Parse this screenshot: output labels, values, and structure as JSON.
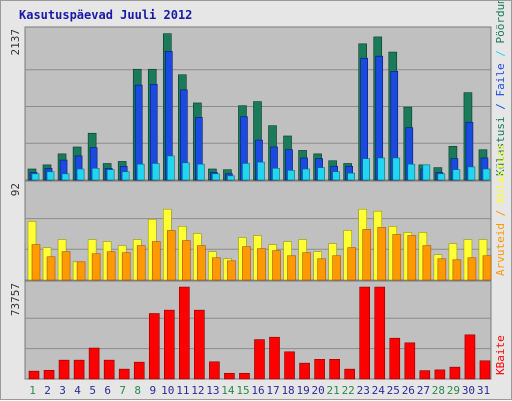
{
  "title": "Kasutuspäevad Juuli 2012",
  "colors": {
    "panel_bg": "#c0c0c0",
    "grid": "#8c8c8c",
    "visits": "#1a7a5a",
    "pages": "#1a4adf",
    "files": "#22d6f2",
    "hits": "#ffff33",
    "hits_stroke": "#999900",
    "hosts": "#ff9900",
    "hosts_stroke": "#aa5500",
    "kbytes": "#ff0000",
    "kbytes_stroke": "#880000",
    "weekday_label": "#2a2a9a",
    "weekend_label": "#2a8a4a"
  },
  "chart_data": [
    {
      "type": "bar",
      "title": "",
      "ymax_label": "2137",
      "right_labels": [
        {
          "text": "Külastusi",
          "color": "#1a7a5a"
        },
        {
          "text": " / ",
          "color": "#1a4adf"
        },
        {
          "text": "Faile",
          "color": "#1a4adf"
        },
        {
          "text": " / ",
          "color": "#22d6f2"
        },
        {
          "text": "Pöördumisi",
          "color": "#1a7a5a"
        }
      ],
      "ylim": [
        0,
        2137
      ],
      "series": [
        {
          "name": "Külastusi",
          "color": "#1a7a5a",
          "values": [
            160,
            220,
            380,
            480,
            680,
            240,
            270,
            1610,
            1610,
            2127,
            1530,
            1120,
            160,
            150,
            1080,
            1140,
            790,
            640,
            430,
            380,
            280,
            240,
            1980,
            2080,
            1860,
            1060,
            220,
            180,
            490,
            1270,
            440
          ]
        },
        {
          "name": "Faile",
          "color": "#1a4adf",
          "values": [
            110,
            170,
            290,
            350,
            470,
            170,
            200,
            1380,
            1390,
            1870,
            1310,
            910,
            110,
            90,
            920,
            580,
            480,
            440,
            320,
            310,
            200,
            200,
            1770,
            1800,
            1580,
            760,
            160,
            110,
            310,
            840,
            320
          ]
        },
        {
          "name": "Pöördumisi",
          "color": "#22d6f2",
          "values": [
            90,
            120,
            90,
            160,
            170,
            150,
            120,
            230,
            240,
            350,
            250,
            230,
            90,
            60,
            240,
            260,
            170,
            140,
            160,
            180,
            120,
            100,
            310,
            320,
            320,
            230,
            220,
            90,
            150,
            190,
            160
          ]
        }
      ]
    },
    {
      "type": "bar",
      "title": "",
      "ymax_label": "92",
      "right_labels": [
        {
          "text": "Arvuteid",
          "color": "#ff9900"
        },
        {
          "text": " / ",
          "color": "#ff9900"
        },
        {
          "text": "Külastusi",
          "color": "#ffff33"
        }
      ],
      "ylim": [
        0,
        92
      ],
      "series": [
        {
          "name": "Arvuteid",
          "color": "#ff9900",
          "values": [
            35,
            23,
            28,
            18,
            26,
            28,
            27,
            34,
            38,
            49,
            39,
            34,
            22,
            19,
            33,
            31,
            29,
            24,
            27,
            21,
            24,
            32,
            50,
            52,
            45,
            44,
            34,
            21,
            20,
            22,
            24
          ]
        },
        {
          "name": "Külastusi",
          "color": "#ffff33",
          "values": [
            58,
            32,
            40,
            18,
            40,
            38,
            34,
            40,
            60,
            70,
            53,
            46,
            28,
            21,
            42,
            44,
            35,
            38,
            40,
            28,
            36,
            49,
            70,
            68,
            53,
            47,
            47,
            25,
            36,
            40,
            40
          ]
        }
      ]
    },
    {
      "type": "bar",
      "title": "",
      "ymax_label": "73757",
      "right_labels": [
        {
          "text": "KBaite",
          "color": "#ff0000"
        }
      ],
      "ylim": [
        0,
        73757
      ],
      "series": [
        {
          "name": "KBaite",
          "color": "#ff0000",
          "values": [
            6300,
            7000,
            15100,
            15100,
            24800,
            15100,
            7900,
            13500,
            52500,
            55200,
            73700,
            55200,
            13800,
            4600,
            4600,
            31600,
            33500,
            21800,
            12700,
            15800,
            15800,
            7900,
            73700,
            73700,
            32700,
            29000,
            6700,
            7300,
            9500,
            35400,
            14600
          ]
        }
      ]
    }
  ],
  "x_axis": {
    "days": [
      "1",
      "2",
      "3",
      "4",
      "5",
      "6",
      "7",
      "8",
      "9",
      "10",
      "11",
      "12",
      "13",
      "14",
      "15",
      "16",
      "17",
      "18",
      "19",
      "20",
      "21",
      "22",
      "23",
      "24",
      "25",
      "26",
      "27",
      "28",
      "29",
      "30",
      "31"
    ],
    "weekend_days": [
      1,
      7,
      8,
      14,
      15,
      21,
      22,
      28,
      29
    ]
  }
}
